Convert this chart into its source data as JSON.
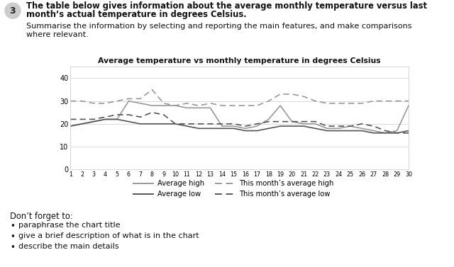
{
  "title": "Average temperature vs monthly temperature in degrees Celsius",
  "x_ticks": [
    1,
    2,
    3,
    4,
    5,
    6,
    7,
    8,
    9,
    10,
    11,
    12,
    13,
    14,
    15,
    16,
    17,
    18,
    19,
    20,
    21,
    22,
    23,
    24,
    25,
    26,
    27,
    28,
    29,
    30
  ],
  "ylim": [
    0,
    45
  ],
  "yticks": [
    0,
    10,
    20,
    30,
    40
  ],
  "avg_high": [
    19,
    20,
    21,
    22,
    22,
    30,
    29,
    28,
    28,
    28,
    27,
    27,
    27,
    19,
    19,
    18,
    19,
    22,
    28,
    21,
    20,
    20,
    18,
    18,
    19,
    18,
    17,
    16,
    17,
    28
  ],
  "avg_low": [
    19,
    20,
    21,
    22,
    22,
    21,
    20,
    20,
    20,
    20,
    19,
    18,
    18,
    18,
    18,
    17,
    17,
    18,
    19,
    19,
    19,
    18,
    17,
    17,
    17,
    17,
    16,
    16,
    16,
    17
  ],
  "this_high": [
    30,
    30,
    29,
    29,
    30,
    31,
    31,
    35,
    29,
    28,
    29,
    28,
    29,
    28,
    28,
    28,
    28,
    30,
    33,
    33,
    32,
    30,
    29,
    29,
    29,
    29,
    30,
    30,
    30,
    30
  ],
  "this_low": [
    22,
    22,
    22,
    23,
    24,
    24,
    23,
    25,
    24,
    20,
    20,
    20,
    20,
    20,
    20,
    19,
    20,
    21,
    21,
    21,
    21,
    21,
    19,
    19,
    19,
    20,
    19,
    17,
    16,
    16
  ],
  "avg_high_color": "#999999",
  "avg_low_color": "#555555",
  "this_high_color": "#999999",
  "this_low_color": "#555555",
  "header_number": "3",
  "header_bold": "The table below gives information about the average monthly temperature versus last month’s actual temperature in degrees Celsius.",
  "subheader": "Summarise the information by selecting and reporting the main features, and make comparisons where relevant.",
  "footer_title": "Don’t forget to:",
  "footer_bullets": [
    "paraphrase the chart title",
    "give a brief description of what is in the chart",
    "describe the main details"
  ],
  "legend_labels": [
    "Average high",
    "Average low",
    "This month’s average high",
    "This month’s average low"
  ],
  "bg_color": "#ffffff"
}
